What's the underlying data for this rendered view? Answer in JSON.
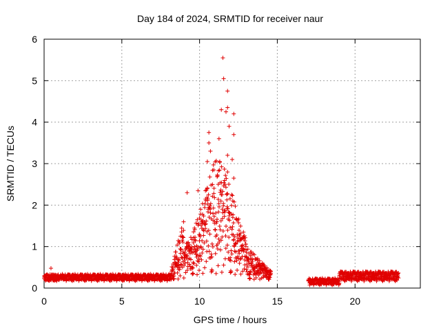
{
  "chart_data": {
    "type": "scatter",
    "title": "Day 184 of 2024, SRMTID for receiver naur",
    "xlabel": "GPS time / hours",
    "ylabel": "SRMTID / TECUs",
    "xlim": [
      0,
      24.2
    ],
    "ylim": [
      0,
      6
    ],
    "xticks": [
      0,
      5,
      10,
      15,
      20
    ],
    "yticks": [
      0,
      1,
      2,
      3,
      4,
      5,
      6
    ],
    "grid": true,
    "marker": "plus",
    "color": "#e00000",
    "segments": [
      {
        "x_start": 0.0,
        "x_end": 8.2,
        "baseline": 0.25,
        "spread": 0.08,
        "note": "quiet background"
      },
      {
        "x_start": 8.2,
        "x_end": 9.0,
        "baseline": 0.6,
        "spread": 0.4,
        "note": "rise"
      },
      {
        "x_start": 9.0,
        "x_end": 13.0,
        "baseline": 1.3,
        "spread": 1.2,
        "note": "active TID period"
      },
      {
        "x_start": 13.0,
        "x_end": 14.6,
        "baseline": 0.5,
        "spread": 0.25,
        "note": "decay"
      },
      {
        "x_start": 17.0,
        "x_end": 19.0,
        "baseline": 0.15,
        "spread": 0.08,
        "note": "quiet"
      },
      {
        "x_start": 19.0,
        "x_end": 22.8,
        "baseline": 0.28,
        "spread": 0.12,
        "note": "quiet with minor bumps"
      }
    ],
    "peaks": [
      {
        "x": 11.5,
        "y": 5.55
      },
      {
        "x": 11.55,
        "y": 5.05
      },
      {
        "x": 11.8,
        "y": 4.75
      },
      {
        "x": 11.8,
        "y": 4.35
      },
      {
        "x": 11.7,
        "y": 4.25
      },
      {
        "x": 12.2,
        "y": 4.2
      },
      {
        "x": 11.4,
        "y": 4.3
      },
      {
        "x": 11.9,
        "y": 3.9
      },
      {
        "x": 10.6,
        "y": 3.75
      },
      {
        "x": 11.25,
        "y": 3.6
      },
      {
        "x": 12.2,
        "y": 3.7
      },
      {
        "x": 10.6,
        "y": 3.5
      },
      {
        "x": 10.7,
        "y": 3.3
      },
      {
        "x": 12.1,
        "y": 3.1
      },
      {
        "x": 11.8,
        "y": 3.2
      },
      {
        "x": 11.3,
        "y": 3.05
      },
      {
        "x": 10.5,
        "y": 3.05
      },
      {
        "x": 11.8,
        "y": 2.8
      },
      {
        "x": 12.2,
        "y": 2.65
      },
      {
        "x": 9.2,
        "y": 2.3
      },
      {
        "x": 9.9,
        "y": 2.35
      },
      {
        "x": 10.5,
        "y": 2.4
      },
      {
        "x": 11.2,
        "y": 2.5
      }
    ]
  }
}
